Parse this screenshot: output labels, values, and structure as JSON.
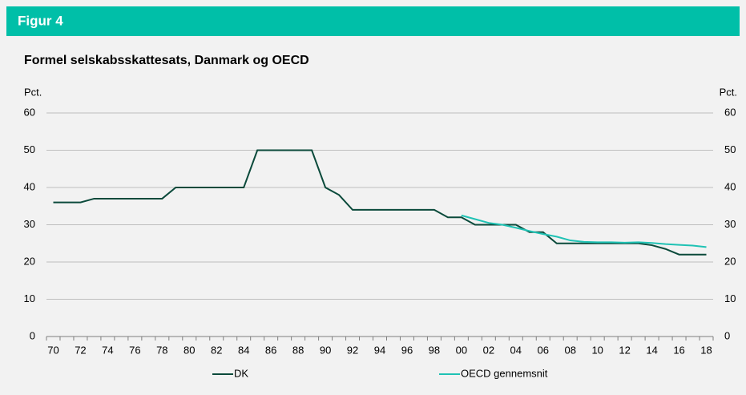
{
  "header": {
    "title": "Figur 4"
  },
  "chart_data": {
    "type": "line",
    "title": "Formel selskabsskattesats, Danmark og OECD",
    "ylabel": "Pct.",
    "y2label": "Pct.",
    "categories": [
      "70",
      null,
      "72",
      null,
      "74",
      null,
      "76",
      null,
      "78",
      null,
      "80",
      null,
      "82",
      null,
      "84",
      null,
      "86",
      null,
      "88",
      null,
      "90",
      null,
      "92",
      null,
      "94",
      null,
      "96",
      null,
      "98",
      null,
      "00",
      null,
      "02",
      null,
      "04",
      null,
      "06",
      null,
      "08",
      null,
      "10",
      null,
      "12",
      null,
      "14",
      null,
      "16",
      null,
      "18"
    ],
    "series": [
      {
        "name": "DK",
        "color": "#0b4a3b",
        "values": [
          36,
          36,
          36,
          37,
          37,
          37,
          37,
          37,
          37,
          40,
          40,
          40,
          40,
          40,
          40,
          50,
          50,
          50,
          50,
          50,
          40,
          38,
          34,
          34,
          34,
          34,
          34,
          34,
          34,
          32,
          32,
          30,
          30,
          30,
          30,
          28,
          28,
          25,
          25,
          25,
          25,
          25,
          25,
          25,
          24.5,
          23.5,
          22,
          22,
          22
        ]
      },
      {
        "name": "OECD gennemsnit",
        "color": "#1fc2b4",
        "values": [
          null,
          null,
          null,
          null,
          null,
          null,
          null,
          null,
          null,
          null,
          null,
          null,
          null,
          null,
          null,
          null,
          null,
          null,
          null,
          null,
          null,
          null,
          null,
          null,
          null,
          null,
          null,
          null,
          null,
          null,
          32.5,
          31.5,
          30.5,
          30,
          29.2,
          28.3,
          27.5,
          26.8,
          25.8,
          25.4,
          25.3,
          25.3,
          25.2,
          25.3,
          25.1,
          24.8,
          24.6,
          24.4,
          24
        ]
      }
    ],
    "ylim": [
      0,
      60
    ],
    "yticks": [
      0,
      10,
      20,
      30,
      40,
      50,
      60
    ],
    "y2lim": [
      0,
      60
    ],
    "y2ticks": [
      0,
      10,
      20,
      30,
      40,
      50,
      60
    ],
    "grid": true,
    "legend": "bottom"
  }
}
